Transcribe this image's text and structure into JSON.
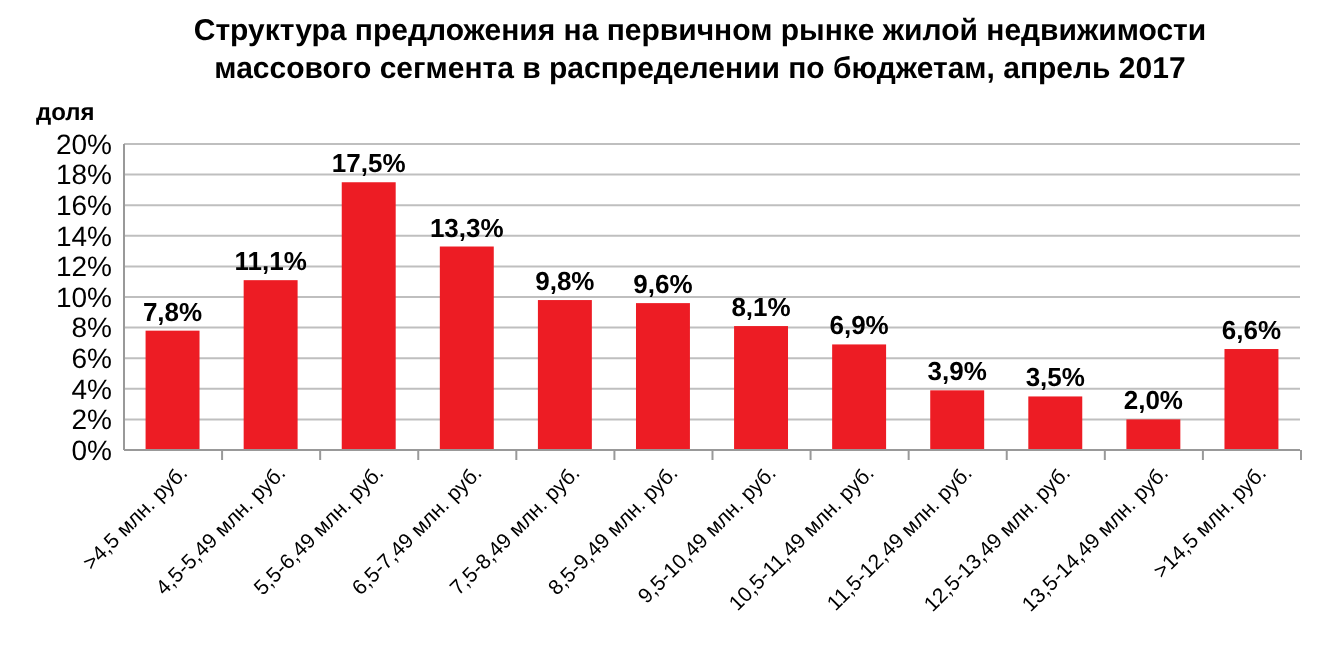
{
  "chart_data": {
    "type": "bar",
    "title": "Структура  предложения на первичном рынке жилой недвижимости\nмассового сегмента в распределении по бюджетам, апрель 2017",
    "ylabel": "доля",
    "categories": [
      ">4,5 млн. руб.",
      "4,5-5,49 млн. руб.",
      "5,5-6,49 млн. руб.",
      "6,5-7,49 млн. руб.",
      "7,5-8,49 млн. руб.",
      "8,5-9,49 млн. руб.",
      "9,5-10,49 млн. руб.",
      "10,5-11,49 млн. руб.",
      "11,5-12,49 млн. руб.",
      "12,5-13,49 млн. руб.",
      "13,5-14,49 млн. руб.",
      ">14,5 млн. руб."
    ],
    "values": [
      7.8,
      11.1,
      17.5,
      13.3,
      9.8,
      9.6,
      8.1,
      6.9,
      3.9,
      3.5,
      2.0,
      6.6
    ],
    "value_labels": [
      "7,8%",
      "11,1%",
      "17,5%",
      "13,3%",
      "9,8%",
      "9,6%",
      "8,1%",
      "6,9%",
      "3,9%",
      "3,5%",
      "2,0%",
      "6,6%"
    ],
    "color": "#ed1c24",
    "ylim": [
      0,
      20
    ],
    "yticks": [
      {
        "value": 0,
        "label": "0%"
      },
      {
        "value": 2,
        "label": "2%"
      },
      {
        "value": 4,
        "label": "4%"
      },
      {
        "value": 6,
        "label": "6%"
      },
      {
        "value": 8,
        "label": "8%"
      },
      {
        "value": 10,
        "label": "10%"
      },
      {
        "value": 12,
        "label": "12%"
      },
      {
        "value": 14,
        "label": "14%"
      },
      {
        "value": 16,
        "label": "16%"
      },
      {
        "value": 18,
        "label": "18%"
      },
      {
        "value": 20,
        "label": "20%"
      }
    ],
    "grid": "y"
  }
}
